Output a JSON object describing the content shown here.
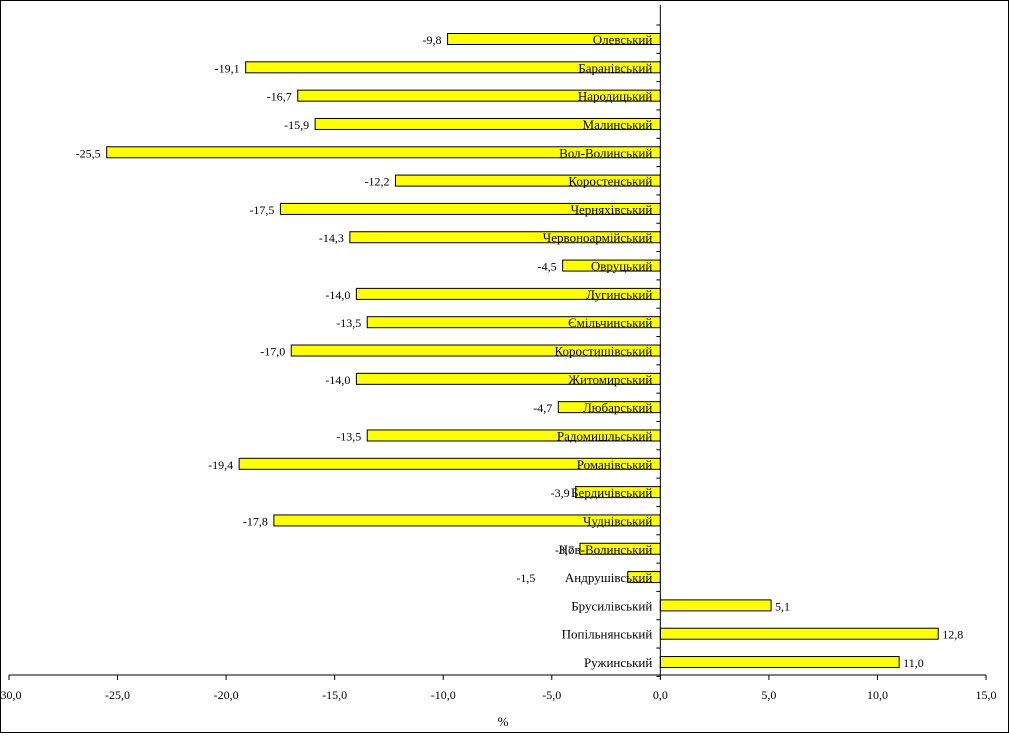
{
  "chart_data": {
    "type": "bar",
    "orientation": "horizontal",
    "categories": [
      "Олевський",
      "Баранівський",
      "Народицький",
      "Малинський",
      "Вол-Волинський",
      "Коростенський",
      "Черняхівський",
      "Червоноармійський",
      "Овруцький",
      "Лугинський",
      "Ємільчинський",
      "Коростишівський",
      "Житомирський",
      "Любарський",
      "Радомишльський",
      "Романівський",
      "Бердичівський",
      "Чуднівський",
      "Нов-Волинський",
      "Андрушівський",
      "Брусилівський",
      "Попільнянський",
      "Ружинський"
    ],
    "values": [
      -9.8,
      -19.1,
      -16.7,
      -15.9,
      -25.5,
      -12.2,
      -17.5,
      -14.3,
      -4.5,
      -14.0,
      -13.5,
      -17.0,
      -14.0,
      -4.7,
      -13.5,
      -19.4,
      -3.9,
      -17.8,
      -3.7,
      -1.5,
      5.1,
      12.8,
      11.0
    ],
    "value_labels": [
      "-9,8",
      "-19,1",
      "-16,7",
      "-15,9",
      "-25,5",
      "-12,2",
      "-17,5",
      "-14,3",
      "-4,5",
      "-14,0",
      "-13,5",
      "-17,0",
      "-14,0",
      "-4,7",
      "-13,5",
      "-19,4",
      "-3,9",
      "-17,8",
      "-3,7",
      "-1,5",
      "5,1",
      "12,8",
      "11,0"
    ],
    "xlabel": "%",
    "xlim": [
      -30,
      15
    ],
    "xticks": [
      -30,
      -25,
      -20,
      -15,
      -10,
      -5,
      0,
      5,
      10,
      15
    ],
    "xtick_labels": [
      "-30,0",
      "-25,0",
      "-20,0",
      "-15,0",
      "-10,0",
      "-5,0",
      "0,0",
      "5,0",
      "10,0",
      "15,0"
    ],
    "grid": false,
    "legend": "none",
    "bar_color": "#ffff00",
    "bar_edge_color": "#000000"
  }
}
